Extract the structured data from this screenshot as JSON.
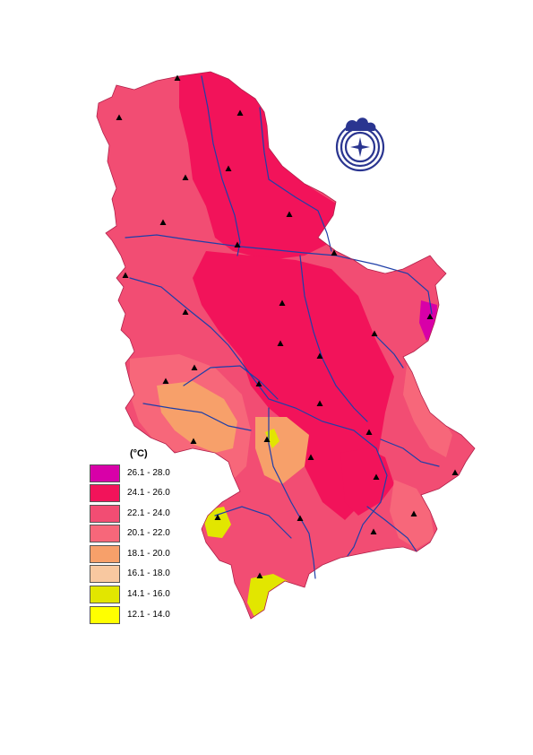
{
  "legend": {
    "unit": "(°C)",
    "classes": [
      {
        "label": "26.1 - 28.0",
        "color": "#d800a8"
      },
      {
        "label": "24.1 - 26.0",
        "color": "#f2135a"
      },
      {
        "label": "22.1 - 24.0",
        "color": "#f24d73"
      },
      {
        "label": "20.1 - 22.0",
        "color": "#f7677a"
      },
      {
        "label": "18.1 - 20.0",
        "color": "#f7a06a"
      },
      {
        "label": "16.1 - 18.0",
        "color": "#f8c8a0"
      },
      {
        "label": "14.1 - 16.0",
        "color": "#e2e600"
      },
      {
        "label": "12.1 - 14.0",
        "color": "#ffff00"
      }
    ]
  },
  "colors": {
    "river": "#1f3fa8",
    "station_marker": "#000000",
    "logo": "#2a3590"
  },
  "icons": {
    "station": "triangle-icon",
    "logo": "hydrometeorological-service-logo"
  }
}
